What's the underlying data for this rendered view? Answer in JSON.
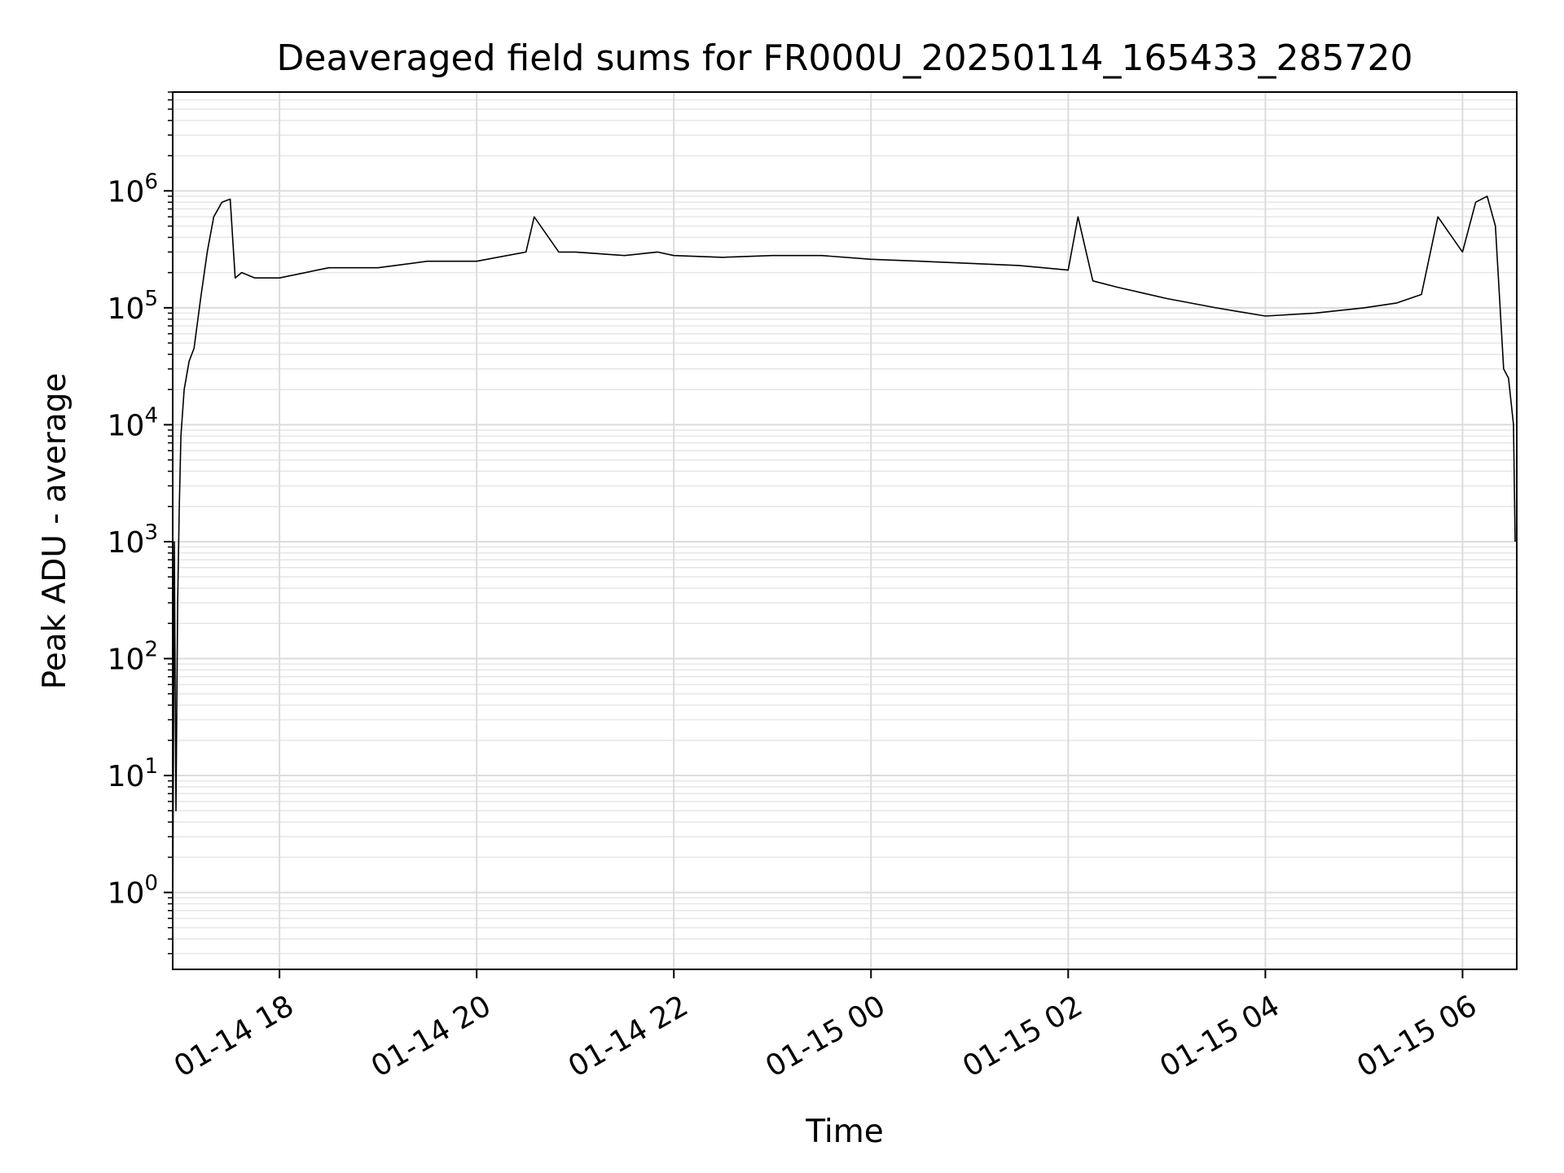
{
  "chart_data": {
    "type": "line",
    "title": "Deaveraged field sums for FR000U_20250114_165433_285720",
    "xlabel": "Time",
    "ylabel": "Peak ADU - average",
    "yscale": "log",
    "xlim": [
      "2025-01-14 16:55",
      "2025-01-15 06:33"
    ],
    "ylim": [
      0.22,
      7000000
    ],
    "grid": true,
    "line_color": "#000000",
    "x_ticks": [
      {
        "value": "2025-01-14 18:00",
        "label": "01-14 18"
      },
      {
        "value": "2025-01-14 20:00",
        "label": "01-14 20"
      },
      {
        "value": "2025-01-14 22:00",
        "label": "01-14 22"
      },
      {
        "value": "2025-01-15 00:00",
        "label": "01-15 00"
      },
      {
        "value": "2025-01-15 02:00",
        "label": "01-15 02"
      },
      {
        "value": "2025-01-15 04:00",
        "label": "01-15 04"
      },
      {
        "value": "2025-01-15 06:00",
        "label": "01-15 06"
      }
    ],
    "y_ticks": [
      {
        "value": 1,
        "base": "10",
        "exp": "0"
      },
      {
        "value": 10,
        "base": "10",
        "exp": "1"
      },
      {
        "value": 100,
        "base": "10",
        "exp": "2"
      },
      {
        "value": 1000,
        "base": "10",
        "exp": "3"
      },
      {
        "value": 10000,
        "base": "10",
        "exp": "4"
      },
      {
        "value": 100000,
        "base": "10",
        "exp": "5"
      },
      {
        "value": 1000000,
        "base": "10",
        "exp": "6"
      }
    ],
    "series": [
      {
        "x": [
          "2025-01-14 16:55",
          "2025-01-14 16:56",
          "2025-01-14 16:57",
          "2025-01-14 16:58",
          "2025-01-14 16:59",
          "2025-01-14 17:00",
          "2025-01-14 17:02",
          "2025-01-14 17:05",
          "2025-01-14 17:08",
          "2025-01-14 17:12",
          "2025-01-14 17:16",
          "2025-01-14 17:20",
          "2025-01-14 17:25",
          "2025-01-14 17:30",
          "2025-01-14 17:33",
          "2025-01-14 17:37",
          "2025-01-14 17:45",
          "2025-01-14 18:00",
          "2025-01-14 18:30",
          "2025-01-14 19:00",
          "2025-01-14 19:30",
          "2025-01-14 20:00",
          "2025-01-14 20:30",
          "2025-01-14 20:35",
          "2025-01-14 20:50",
          "2025-01-14 21:00",
          "2025-01-14 21:30",
          "2025-01-14 21:50",
          "2025-01-14 22:00",
          "2025-01-14 22:30",
          "2025-01-14 23:00",
          "2025-01-14 23:30",
          "2025-01-15 00:00",
          "2025-01-15 00:30",
          "2025-01-15 01:00",
          "2025-01-15 01:30",
          "2025-01-15 02:00",
          "2025-01-15 02:06",
          "2025-01-15 02:15",
          "2025-01-15 02:30",
          "2025-01-15 03:00",
          "2025-01-15 03:30",
          "2025-01-15 04:00",
          "2025-01-15 04:30",
          "2025-01-15 05:00",
          "2025-01-15 05:20",
          "2025-01-15 05:35",
          "2025-01-15 05:45",
          "2025-01-15 06:00",
          "2025-01-15 06:08",
          "2025-01-15 06:15",
          "2025-01-15 06:20",
          "2025-01-15 06:25",
          "2025-01-15 06:28",
          "2025-01-15 06:31",
          "2025-01-15 06:32"
        ],
        "y": [
          0.5,
          1000,
          5,
          300,
          2000,
          8000,
          20000,
          35000,
          45000,
          120000,
          300000,
          600000,
          800000,
          850000,
          180000,
          200000,
          180000,
          180000,
          220000,
          220000,
          250000,
          250000,
          300000,
          600000,
          300000,
          300000,
          280000,
          300000,
          280000,
          270000,
          280000,
          280000,
          260000,
          250000,
          240000,
          230000,
          210000,
          600000,
          170000,
          150000,
          120000,
          100000,
          85000,
          90000,
          100000,
          110000,
          130000,
          600000,
          300000,
          800000,
          900000,
          500000,
          30000,
          25000,
          10000,
          1000
        ]
      }
    ]
  }
}
